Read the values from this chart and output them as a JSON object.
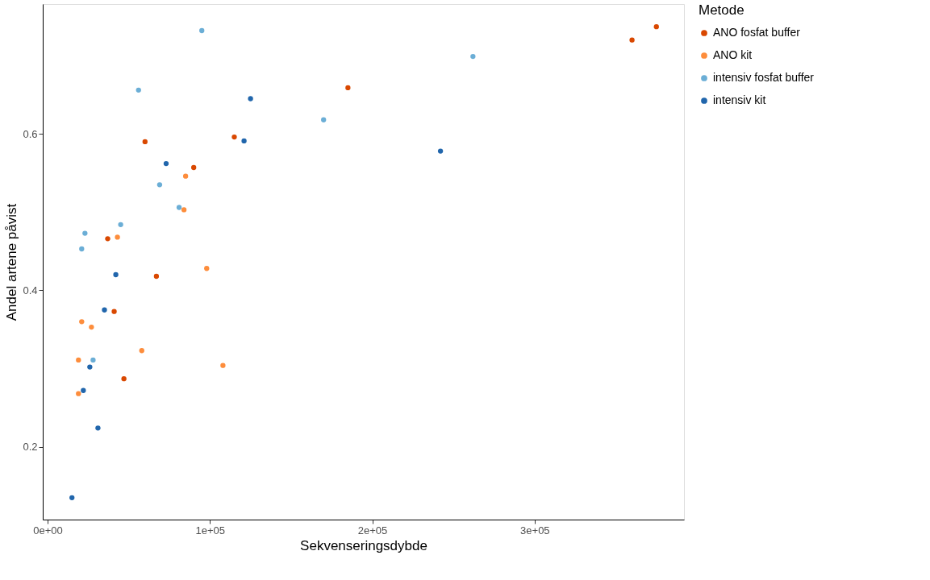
{
  "chart_data": {
    "type": "scatter",
    "xlabel": "Sekvenseringsdybde",
    "ylabel": "Andel artene påvist",
    "legend_title": "Metode",
    "legend": "right",
    "grid": false,
    "marker": "circle",
    "xlim": [
      -3000,
      392000
    ],
    "ylim": [
      0.107,
      0.766
    ],
    "xticks": [
      {
        "value": 0,
        "label": "0e+00"
      },
      {
        "value": 100000,
        "label": "1e+05"
      },
      {
        "value": 200000,
        "label": "2e+05"
      },
      {
        "value": 300000,
        "label": "3e+05"
      }
    ],
    "yticks": [
      {
        "value": 0.2,
        "label": "0.2"
      },
      {
        "value": 0.4,
        "label": "0.4"
      },
      {
        "value": 0.6,
        "label": "0.6"
      }
    ],
    "series": [
      {
        "name": "ANO fosfat buffer",
        "color": "#d94801",
        "x": [
          375000,
          360000,
          185000,
          115000,
          60000,
          90000,
          37000,
          67000,
          41000,
          47000
        ],
        "values": [
          0.737,
          0.72,
          0.659,
          0.596,
          0.59,
          0.557,
          0.466,
          0.418,
          0.373,
          0.287
        ]
      },
      {
        "name": "ANO kit",
        "color": "#fd8d3c",
        "x": [
          85000,
          84000,
          43000,
          98000,
          21000,
          27000,
          58000,
          19000,
          108000,
          19000
        ],
        "values": [
          0.546,
          0.503,
          0.468,
          0.428,
          0.36,
          0.353,
          0.323,
          0.311,
          0.304,
          0.268
        ]
      },
      {
        "name": "intensiv fosfat buffer",
        "color": "#6baed6",
        "x": [
          95000,
          56000,
          170000,
          262000,
          69000,
          81000,
          23000,
          45000,
          21000,
          28000
        ],
        "values": [
          0.732,
          0.656,
          0.618,
          0.699,
          0.535,
          0.506,
          0.473,
          0.484,
          0.453,
          0.311
        ]
      },
      {
        "name": "intensiv kit",
        "color": "#2166ac",
        "x": [
          125000,
          121000,
          73000,
          242000,
          42000,
          35000,
          26000,
          22000,
          31000,
          15000
        ],
        "values": [
          0.645,
          0.591,
          0.562,
          0.578,
          0.42,
          0.375,
          0.302,
          0.272,
          0.224,
          0.135
        ]
      }
    ]
  }
}
